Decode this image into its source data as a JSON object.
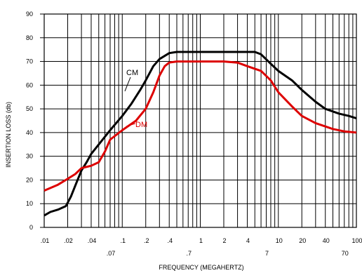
{
  "chart_data": {
    "type": "line",
    "title": "",
    "xlabel": "FREQUENCY (MEGAHERTZ)",
    "ylabel": "INSERTION LOSS (db)",
    "x_scale": "log",
    "xlim": [
      0.01,
      100
    ],
    "ylim": [
      0,
      90
    ],
    "grid": true,
    "y_ticks": [
      "0",
      "10",
      "20",
      "30",
      "40",
      "50",
      "60",
      "70",
      "80",
      "90"
    ],
    "x_ticks": [
      {
        "value": 0.01,
        "label": ".01"
      },
      {
        "value": 0.02,
        "label": ".02"
      },
      {
        "value": 0.04,
        "label": ".04"
      },
      {
        "value": 0.07,
        "label": ".07"
      },
      {
        "value": 0.1,
        "label": ".1"
      },
      {
        "value": 0.2,
        "label": ".2"
      },
      {
        "value": 0.4,
        "label": ".4"
      },
      {
        "value": 0.7,
        "label": ".7"
      },
      {
        "value": 1,
        "label": "1"
      },
      {
        "value": 2,
        "label": "2"
      },
      {
        "value": 4,
        "label": "4"
      },
      {
        "value": 7,
        "label": "7"
      },
      {
        "value": 10,
        "label": "10"
      },
      {
        "value": 20,
        "label": "20"
      },
      {
        "value": 40,
        "label": "40"
      },
      {
        "value": 70,
        "label": "70"
      },
      {
        "value": 100,
        "label": "100"
      }
    ],
    "series": [
      {
        "name": "CM",
        "color": "#000000",
        "points": [
          [
            0.01,
            5
          ],
          [
            0.012,
            6.5
          ],
          [
            0.015,
            7.5
          ],
          [
            0.019,
            9
          ],
          [
            0.022,
            13
          ],
          [
            0.026,
            19
          ],
          [
            0.03,
            24
          ],
          [
            0.035,
            27.5
          ],
          [
            0.04,
            31
          ],
          [
            0.05,
            35
          ],
          [
            0.07,
            41
          ],
          [
            0.1,
            47
          ],
          [
            0.13,
            52
          ],
          [
            0.17,
            58
          ],
          [
            0.2,
            62
          ],
          [
            0.25,
            68
          ],
          [
            0.3,
            71
          ],
          [
            0.4,
            73.5
          ],
          [
            0.5,
            74
          ],
          [
            1,
            74
          ],
          [
            2,
            74
          ],
          [
            5,
            74
          ],
          [
            6,
            73
          ],
          [
            8,
            69
          ],
          [
            10,
            66
          ],
          [
            15,
            62
          ],
          [
            20,
            58
          ],
          [
            30,
            53
          ],
          [
            40,
            50
          ],
          [
            60,
            48
          ],
          [
            80,
            47
          ],
          [
            100,
            46
          ]
        ]
      },
      {
        "name": "DM",
        "color": "#dd0000",
        "points": [
          [
            0.01,
            15.5
          ],
          [
            0.015,
            18
          ],
          [
            0.02,
            20.5
          ],
          [
            0.025,
            22.5
          ],
          [
            0.03,
            25
          ],
          [
            0.04,
            26
          ],
          [
            0.05,
            27.5
          ],
          [
            0.06,
            32
          ],
          [
            0.07,
            37
          ],
          [
            0.1,
            41
          ],
          [
            0.15,
            45
          ],
          [
            0.2,
            50
          ],
          [
            0.25,
            57
          ],
          [
            0.3,
            64
          ],
          [
            0.35,
            68
          ],
          [
            0.4,
            69.5
          ],
          [
            0.5,
            70
          ],
          [
            2,
            70
          ],
          [
            3,
            69.5
          ],
          [
            4,
            68
          ],
          [
            6,
            66
          ],
          [
            8,
            62
          ],
          [
            10,
            57
          ],
          [
            15,
            51
          ],
          [
            20,
            47
          ],
          [
            30,
            44
          ],
          [
            50,
            41.5
          ],
          [
            70,
            40.5
          ],
          [
            100,
            40
          ]
        ]
      }
    ]
  }
}
